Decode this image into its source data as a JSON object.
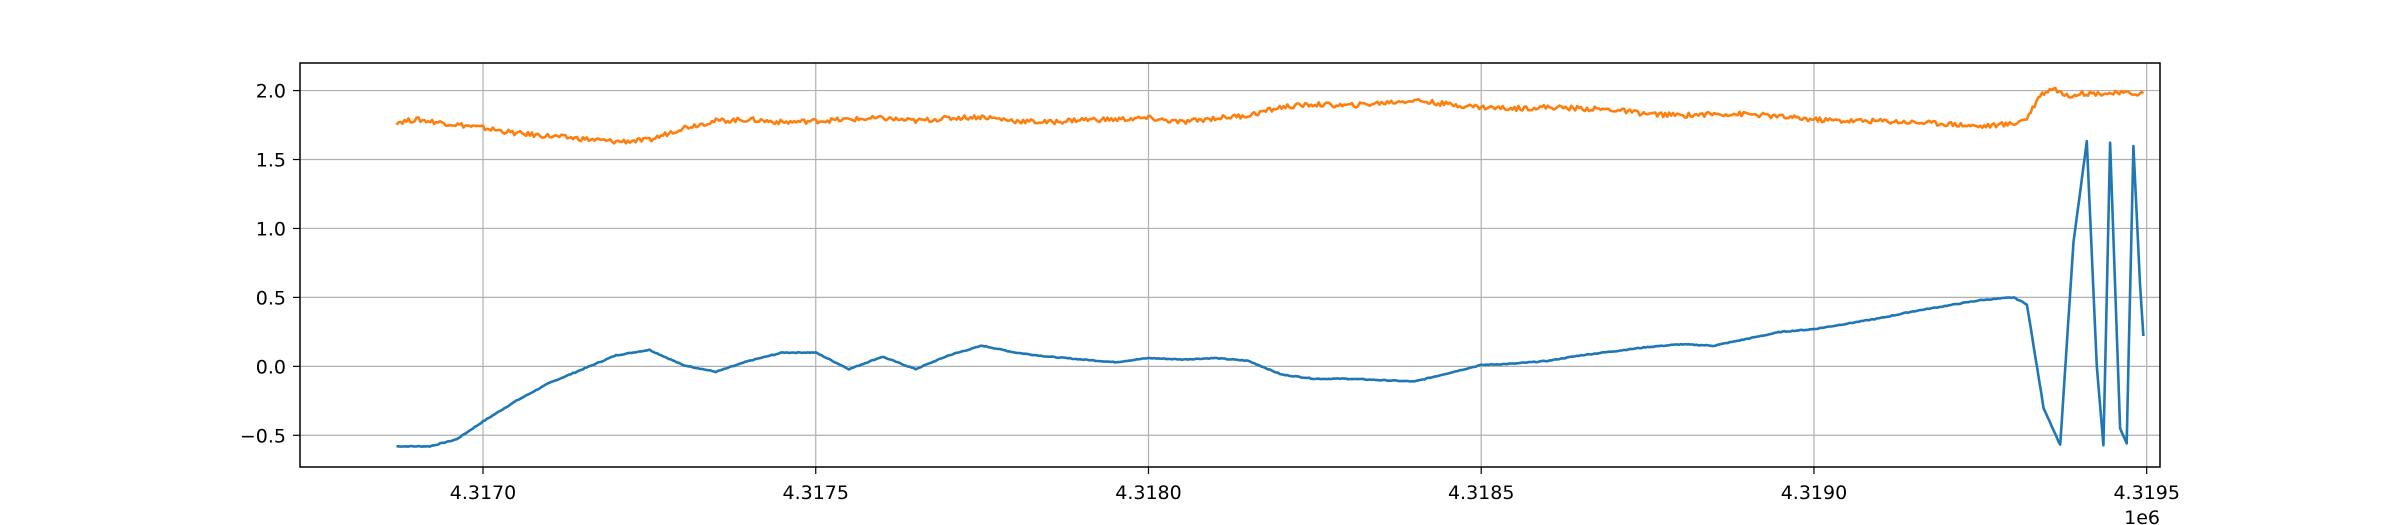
{
  "chart_data": {
    "type": "line",
    "title": "",
    "xlabel": "",
    "ylabel": "",
    "x_offset_label": "1e6",
    "xlim": [
      4316725,
      4319520
    ],
    "ylim": [
      -0.73,
      2.2
    ],
    "x_ticks": [
      4317000,
      4317500,
      4318000,
      4318500,
      4319000,
      4319500
    ],
    "x_tick_labels": [
      "4.3170",
      "4.3175",
      "4.3180",
      "4.3185",
      "4.3190",
      "4.3195"
    ],
    "y_ticks": [
      -0.5,
      0.0,
      0.5,
      1.0,
      1.5,
      2.0
    ],
    "y_tick_labels": [
      "−0.5",
      "0.0",
      "0.5",
      "1.0",
      "1.5",
      "2.0"
    ],
    "grid": true,
    "legend": "none",
    "series": [
      {
        "color": "#1f77b4",
        "x": [
          4316870,
          4316920,
          4316960,
          4317000,
          4317050,
          4317100,
          4317150,
          4317200,
          4317250,
          4317300,
          4317350,
          4317400,
          4317450,
          4317500,
          4317550,
          4317600,
          4317650,
          4317700,
          4317750,
          4317800,
          4317850,
          4317900,
          4317950,
          4318000,
          4318050,
          4318100,
          4318150,
          4318200,
          4318250,
          4318300,
          4318350,
          4318400,
          4318450,
          4318500,
          4318550,
          4318600,
          4318650,
          4318700,
          4318750,
          4318800,
          4318850,
          4318900,
          4318950,
          4319000,
          4319050,
          4319100,
          4319150,
          4319200,
          4319250,
          4319300,
          4319320,
          4319345,
          4319370,
          4319390,
          4319410,
          4319425,
          4319435,
          4319445,
          4319460,
          4319470,
          4319480,
          4319490,
          4319495
        ],
        "values": [
          -0.58,
          -0.58,
          -0.53,
          -0.4,
          -0.25,
          -0.12,
          -0.02,
          0.08,
          0.12,
          0.01,
          -0.04,
          0.04,
          0.1,
          0.1,
          -0.02,
          0.07,
          -0.02,
          0.08,
          0.15,
          0.1,
          0.07,
          0.05,
          0.03,
          0.06,
          0.05,
          0.06,
          0.04,
          -0.06,
          -0.09,
          -0.09,
          -0.1,
          -0.11,
          -0.05,
          0.01,
          0.02,
          0.04,
          0.08,
          0.11,
          0.14,
          0.16,
          0.15,
          0.2,
          0.25,
          0.27,
          0.31,
          0.35,
          0.4,
          0.44,
          0.48,
          0.5,
          0.45,
          -0.3,
          -0.57,
          0.9,
          1.63,
          0.0,
          -0.57,
          1.62,
          -0.45,
          -0.56,
          1.6,
          0.6,
          0.22
        ]
      },
      {
        "color": "#ff7f0e",
        "x": [
          4316870,
          4316900,
          4316950,
          4317000,
          4317050,
          4317100,
          4317150,
          4317200,
          4317250,
          4317300,
          4317350,
          4317400,
          4317450,
          4317500,
          4317550,
          4317600,
          4317650,
          4317700,
          4317750,
          4317800,
          4317850,
          4317900,
          4317950,
          4318000,
          4318050,
          4318100,
          4318150,
          4318200,
          4318250,
          4318300,
          4318350,
          4318400,
          4318450,
          4318500,
          4318550,
          4318600,
          4318650,
          4318700,
          4318750,
          4318800,
          4318850,
          4318900,
          4318950,
          4319000,
          4319050,
          4319100,
          4319150,
          4319200,
          4319250,
          4319300,
          4319320,
          4319340,
          4319360,
          4319380,
          4319400,
          4319450,
          4319495
        ],
        "values": [
          1.77,
          1.79,
          1.76,
          1.73,
          1.69,
          1.67,
          1.65,
          1.63,
          1.64,
          1.73,
          1.78,
          1.79,
          1.77,
          1.78,
          1.79,
          1.8,
          1.78,
          1.8,
          1.81,
          1.78,
          1.77,
          1.79,
          1.79,
          1.8,
          1.77,
          1.8,
          1.82,
          1.88,
          1.9,
          1.89,
          1.91,
          1.93,
          1.9,
          1.88,
          1.87,
          1.88,
          1.87,
          1.86,
          1.83,
          1.82,
          1.83,
          1.83,
          1.81,
          1.79,
          1.78,
          1.78,
          1.77,
          1.76,
          1.74,
          1.76,
          1.8,
          1.97,
          2.02,
          1.96,
          1.98,
          1.98,
          1.98
        ]
      }
    ]
  }
}
